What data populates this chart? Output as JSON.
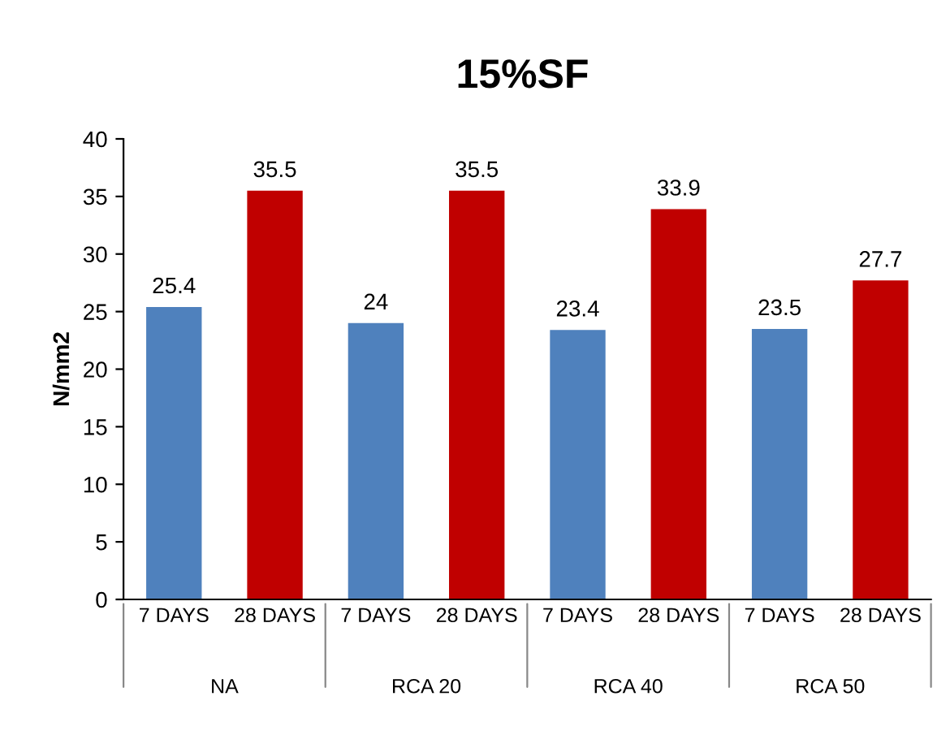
{
  "chart_data": {
    "type": "bar",
    "title": "15%SF",
    "ylabel": "N/mm2",
    "categories": [
      "7 DAYS",
      "28 DAYS",
      "7 DAYS",
      "28 DAYS",
      "7 DAYS",
      "28 DAYS",
      "7 DAYS",
      "28 DAYS"
    ],
    "values": [
      25.4,
      35.5,
      24,
      35.5,
      23.4,
      33.9,
      23.5,
      27.7
    ],
    "colors": [
      "#4f81bd",
      "#c00000",
      "#4f81bd",
      "#c00000",
      "#4f81bd",
      "#c00000",
      "#4f81bd",
      "#c00000"
    ],
    "annotations": [
      "NA",
      "RCA 20",
      "RCA 40",
      "RCA 50"
    ],
    "ylim": [
      0,
      40
    ],
    "yticks": [
      0,
      5,
      10,
      15,
      20,
      25,
      30,
      35,
      40
    ],
    "data_labels": true,
    "grid": false,
    "legend": false
  }
}
